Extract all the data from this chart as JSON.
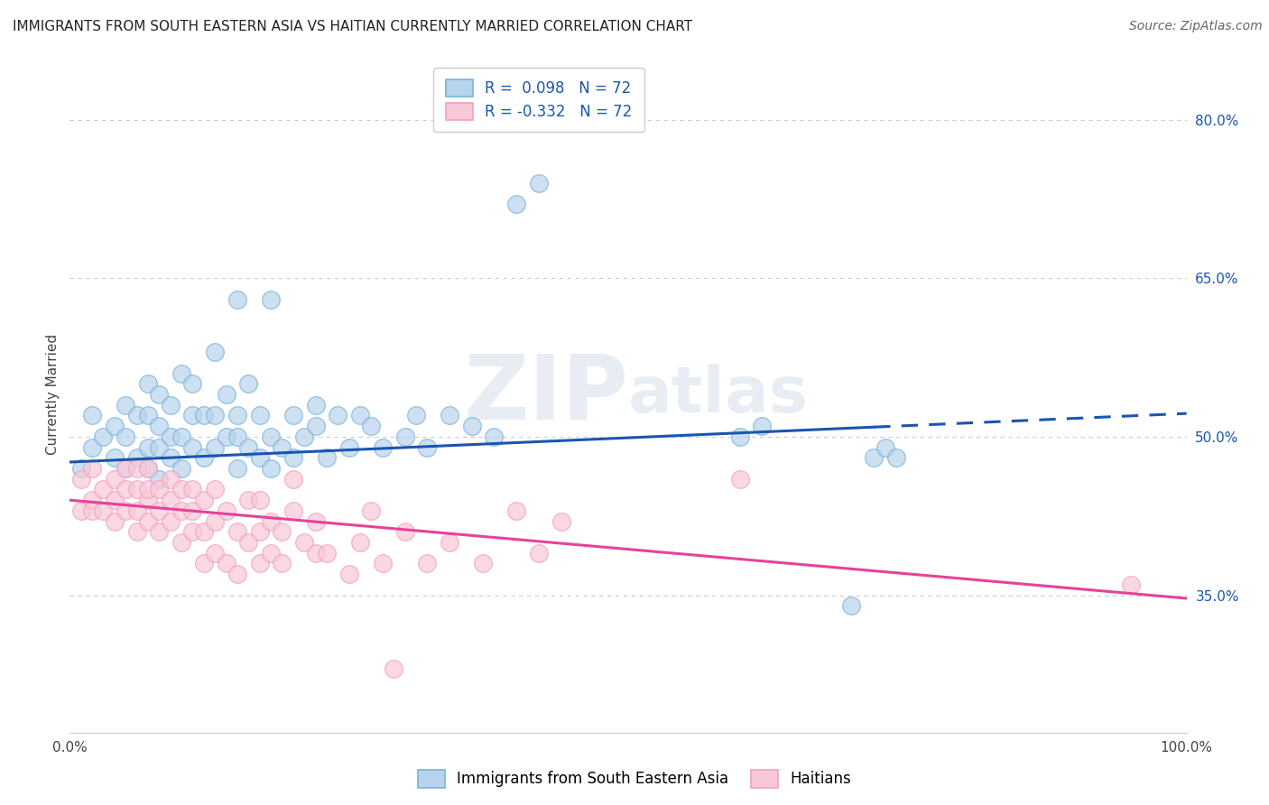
{
  "title": "IMMIGRANTS FROM SOUTH EASTERN ASIA VS HAITIAN CURRENTLY MARRIED CORRELATION CHART",
  "source": "Source: ZipAtlas.com",
  "ylabel": "Currently Married",
  "watermark": "ZIPatlas",
  "blue_R": 0.098,
  "blue_N": 72,
  "pink_R": -0.332,
  "pink_N": 72,
  "xlim": [
    0.0,
    1.0
  ],
  "ylim": [
    0.22,
    0.86
  ],
  "yticks_right": [
    0.35,
    0.5,
    0.65,
    0.8
  ],
  "ytick_labels_right": [
    "35.0%",
    "50.0%",
    "65.0%",
    "80.0%"
  ],
  "blue_scatter_x": [
    0.01,
    0.02,
    0.02,
    0.03,
    0.04,
    0.04,
    0.05,
    0.05,
    0.05,
    0.06,
    0.06,
    0.07,
    0.07,
    0.07,
    0.07,
    0.08,
    0.08,
    0.08,
    0.08,
    0.09,
    0.09,
    0.09,
    0.1,
    0.1,
    0.1,
    0.11,
    0.11,
    0.11,
    0.12,
    0.12,
    0.13,
    0.13,
    0.13,
    0.14,
    0.14,
    0.15,
    0.15,
    0.15,
    0.15,
    0.16,
    0.16,
    0.17,
    0.17,
    0.18,
    0.18,
    0.18,
    0.19,
    0.2,
    0.2,
    0.21,
    0.22,
    0.22,
    0.23,
    0.24,
    0.25,
    0.26,
    0.27,
    0.28,
    0.3,
    0.31,
    0.32,
    0.34,
    0.36,
    0.38,
    0.4,
    0.42,
    0.6,
    0.62,
    0.7,
    0.72,
    0.73,
    0.74
  ],
  "blue_scatter_y": [
    0.47,
    0.49,
    0.52,
    0.5,
    0.48,
    0.51,
    0.47,
    0.5,
    0.53,
    0.48,
    0.52,
    0.47,
    0.49,
    0.52,
    0.55,
    0.46,
    0.49,
    0.51,
    0.54,
    0.48,
    0.5,
    0.53,
    0.47,
    0.5,
    0.56,
    0.49,
    0.52,
    0.55,
    0.48,
    0.52,
    0.49,
    0.52,
    0.58,
    0.5,
    0.54,
    0.47,
    0.5,
    0.52,
    0.63,
    0.49,
    0.55,
    0.48,
    0.52,
    0.47,
    0.5,
    0.63,
    0.49,
    0.48,
    0.52,
    0.5,
    0.51,
    0.53,
    0.48,
    0.52,
    0.49,
    0.52,
    0.51,
    0.49,
    0.5,
    0.52,
    0.49,
    0.52,
    0.51,
    0.5,
    0.72,
    0.74,
    0.5,
    0.51,
    0.34,
    0.48,
    0.49,
    0.48
  ],
  "pink_scatter_x": [
    0.01,
    0.01,
    0.02,
    0.02,
    0.02,
    0.03,
    0.03,
    0.04,
    0.04,
    0.04,
    0.05,
    0.05,
    0.05,
    0.06,
    0.06,
    0.06,
    0.06,
    0.07,
    0.07,
    0.07,
    0.07,
    0.08,
    0.08,
    0.08,
    0.09,
    0.09,
    0.09,
    0.1,
    0.1,
    0.1,
    0.11,
    0.11,
    0.11,
    0.12,
    0.12,
    0.12,
    0.13,
    0.13,
    0.13,
    0.14,
    0.14,
    0.15,
    0.15,
    0.16,
    0.16,
    0.17,
    0.17,
    0.17,
    0.18,
    0.18,
    0.19,
    0.19,
    0.2,
    0.2,
    0.21,
    0.22,
    0.22,
    0.23,
    0.25,
    0.26,
    0.27,
    0.28,
    0.29,
    0.3,
    0.32,
    0.34,
    0.37,
    0.4,
    0.42,
    0.44,
    0.6,
    0.95
  ],
  "pink_scatter_y": [
    0.43,
    0.46,
    0.44,
    0.43,
    0.47,
    0.43,
    0.45,
    0.42,
    0.44,
    0.46,
    0.43,
    0.45,
    0.47,
    0.41,
    0.43,
    0.45,
    0.47,
    0.42,
    0.44,
    0.45,
    0.47,
    0.41,
    0.43,
    0.45,
    0.42,
    0.44,
    0.46,
    0.4,
    0.43,
    0.45,
    0.41,
    0.43,
    0.45,
    0.38,
    0.41,
    0.44,
    0.39,
    0.42,
    0.45,
    0.38,
    0.43,
    0.37,
    0.41,
    0.44,
    0.4,
    0.38,
    0.41,
    0.44,
    0.39,
    0.42,
    0.38,
    0.41,
    0.43,
    0.46,
    0.4,
    0.39,
    0.42,
    0.39,
    0.37,
    0.4,
    0.43,
    0.38,
    0.28,
    0.41,
    0.38,
    0.4,
    0.38,
    0.43,
    0.39,
    0.42,
    0.46,
    0.36
  ],
  "blue_line_y_start": 0.476,
  "blue_line_y_end": 0.522,
  "blue_line_solid_end": 0.72,
  "pink_line_y_start": 0.44,
  "pink_line_y_end": 0.347,
  "blue_color": "#7ab3d9",
  "pink_color": "#f4a0bb",
  "blue_line_color": "#1a56b0",
  "pink_line_color": "#e8419a",
  "blue_marker_fill": "#b8d4ed",
  "pink_marker_fill": "#f9c8d8",
  "legend_blue_label": "Immigrants from South Eastern Asia",
  "legend_pink_label": "Haitians",
  "background_color": "#ffffff",
  "grid_color": "#cccccc",
  "title_fontsize": 11,
  "axis_label_fontsize": 11,
  "tick_fontsize": 11
}
